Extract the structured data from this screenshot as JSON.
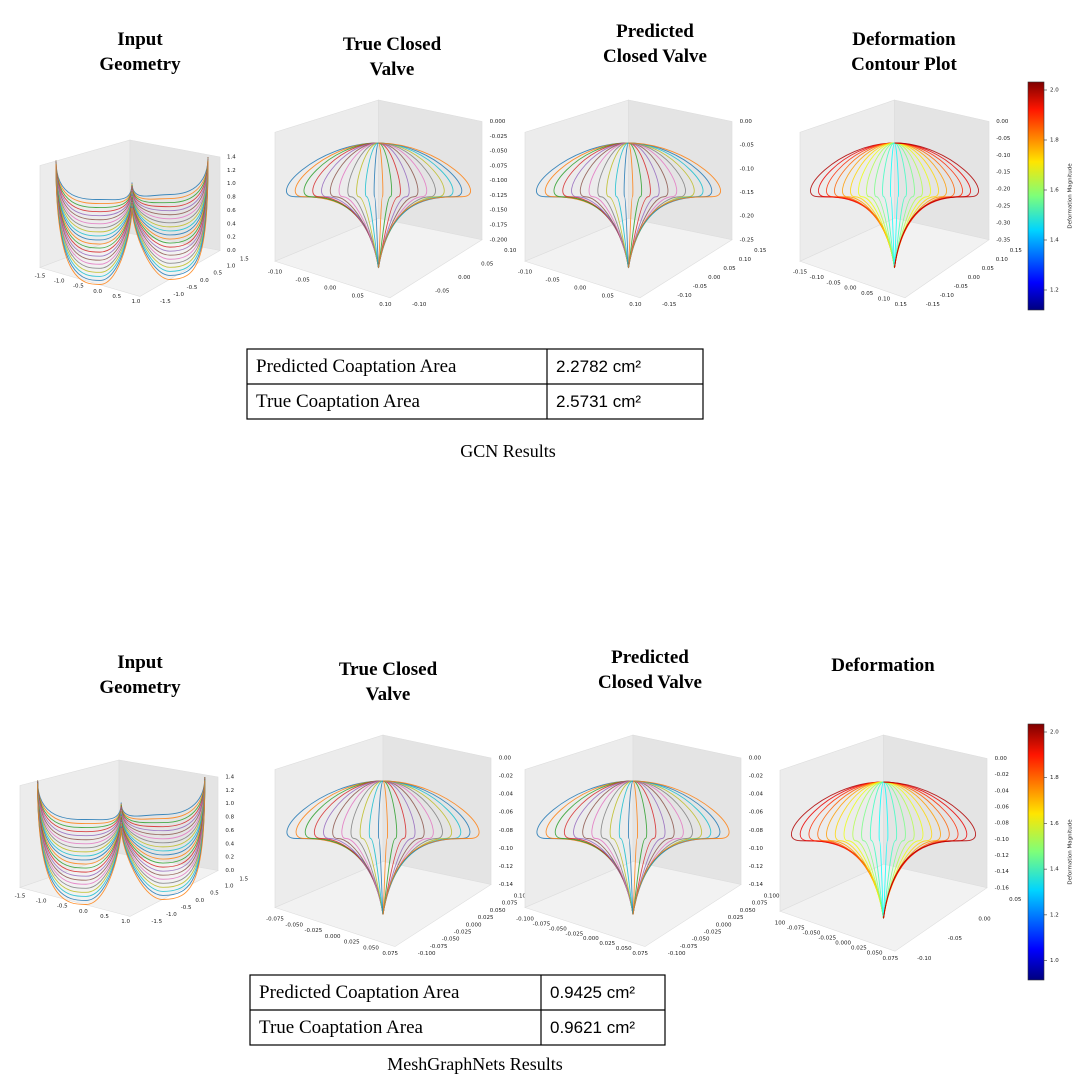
{
  "panels": [
    {
      "plots": [
        {
          "title": [
            "Input",
            "Geometry"
          ],
          "zticks": [
            "1.4",
            "1.2",
            "1.0",
            "0.8",
            "0.6",
            "0.4",
            "0.2",
            "0.0"
          ],
          "xticks": [
            "-1.5",
            "-1.0",
            "-0.5",
            "0.0",
            "0.5",
            "1.0"
          ],
          "yticks": [
            "1.5",
            "1.0",
            "0.5",
            "0.0",
            "-0.5",
            "-1.0",
            "-1.5"
          ]
        },
        {
          "title": [
            "True Closed",
            "Valve"
          ],
          "zticks": [
            "0.000",
            "-0.025",
            "-0.050",
            "-0.075",
            "-0.100",
            "-0.125",
            "-0.150",
            "-0.175",
            "-0.200"
          ],
          "xticks": [
            "-0.10",
            "-0.05",
            "0.00",
            "0.05",
            "0.10"
          ],
          "yticks": [
            "0.10",
            "0.05",
            "0.00",
            "-0.05",
            "-0.10"
          ]
        },
        {
          "title": [
            "Predicted",
            "Closed Valve"
          ],
          "zticks": [
            "0.00",
            "-0.05",
            "-0.10",
            "-0.15",
            "-0.20",
            "-0.25"
          ],
          "xticks": [
            "-0.10",
            "-0.05",
            "0.00",
            "0.05",
            "0.10"
          ],
          "yticks": [
            "0.15",
            "0.10",
            "0.05",
            "0.00",
            "-0.05",
            "-0.10",
            "-0.15"
          ]
        },
        {
          "title": [
            "Deformation",
            "Contour Plot"
          ],
          "zticks": [
            "0.00",
            "-0.05",
            "-0.10",
            "-0.15",
            "-0.20",
            "-0.25",
            "-0.30",
            "-0.35"
          ],
          "xticks": [
            "-0.15",
            "-0.10",
            "-0.05",
            "0.00",
            "0.05",
            "0.10",
            "0.15"
          ],
          "yticks": [
            "0.15",
            "0.10",
            "0.05",
            "0.00",
            "-0.05",
            "-0.10",
            "-0.15"
          ]
        }
      ],
      "colorbar": {
        "label": "Deformation Magnitude",
        "ticks": [
          "2.0",
          "1.8",
          "1.6",
          "1.4",
          "1.2"
        ]
      },
      "table": {
        "rows": [
          [
            "Predicted Coaptation Area",
            "2.2782 cm²"
          ],
          [
            "True Coaptation Area",
            "2.5731 cm²"
          ]
        ]
      },
      "caption": "GCN Results"
    },
    {
      "plots": [
        {
          "title": [
            "Input",
            "Geometry"
          ],
          "zticks": [
            "1.4",
            "1.2",
            "1.0",
            "0.8",
            "0.6",
            "0.4",
            "0.2",
            "0.0"
          ],
          "xticks": [
            "-1.5",
            "-1.0",
            "-0.5",
            "0.0",
            "0.5",
            "1.0"
          ],
          "yticks": [
            "1.5",
            "1.0",
            "0.5",
            "0.0",
            "-0.5",
            "-1.0",
            "-1.5"
          ]
        },
        {
          "title": [
            "True Closed",
            "Valve"
          ],
          "zticks": [
            "0.00",
            "-0.02",
            "-0.04",
            "-0.06",
            "-0.08",
            "-0.10",
            "-0.12",
            "-0.14"
          ],
          "xticks": [
            "-0.075",
            "-0.050",
            "-0.025",
            "0.000",
            "0.025",
            "0.050",
            "0.075"
          ],
          "yticks": [
            "0.100",
            "0.075",
            "0.050",
            "0.025",
            "0.000",
            "-0.025",
            "-0.050",
            "-0.075",
            "-0.100"
          ]
        },
        {
          "title": [
            "Predicted",
            "Closed Valve"
          ],
          "zticks": [
            "0.00",
            "-0.02",
            "-0.04",
            "-0.06",
            "-0.08",
            "-0.10",
            "-0.12",
            "-0.14"
          ],
          "xticks": [
            "-0.100",
            "-0.075",
            "-0.050",
            "-0.025",
            "0.000",
            "0.025",
            "0.050",
            "0.075"
          ],
          "yticks": [
            "0.100",
            "0.075",
            "0.050",
            "0.025",
            "0.000",
            "-0.025",
            "-0.050",
            "-0.075",
            "-0.100"
          ]
        },
        {
          "title": [
            "Deformation"
          ],
          "zticks": [
            "0.00",
            "-0.02",
            "-0.04",
            "-0.06",
            "-0.08",
            "-0.10",
            "-0.12",
            "-0.14",
            "-0.16"
          ],
          "xticks": [
            "100",
            "-0.075",
            "-0.050",
            "-0.025",
            "0.000",
            "0.025",
            "0.050",
            "0.075"
          ],
          "yticks": [
            "0.05",
            "0.00",
            "-0.05",
            "-0.10"
          ]
        }
      ],
      "colorbar": {
        "label": "Deformation Magnitude",
        "ticks": [
          "2.0",
          "1.8",
          "1.6",
          "1.4",
          "1.2",
          "1.0"
        ]
      },
      "table": {
        "rows": [
          [
            "Predicted Coaptation Area",
            "0.9425 cm²"
          ],
          [
            "True Coaptation Area",
            "0.9621 cm²"
          ]
        ]
      },
      "caption": "MeshGraphNets Results"
    }
  ]
}
